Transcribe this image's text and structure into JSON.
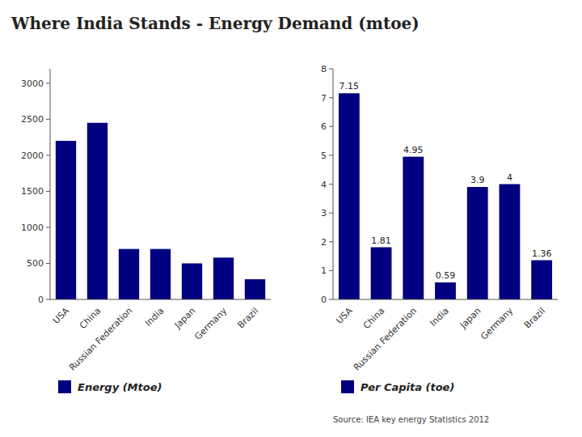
{
  "chart_data": [
    {
      "type": "bar",
      "title": "Where India Stands - Energy Demand (mtoe)",
      "categories": [
        "USA",
        "China",
        "Russian Federation",
        "India",
        "Japan",
        "Germany",
        "Brazil"
      ],
      "series": [
        {
          "name": "Energy (Mtoe)",
          "color": "#000080",
          "values": [
            2200,
            2450,
            700,
            700,
            500,
            580,
            280
          ]
        }
      ],
      "ylim": [
        0,
        3200
      ],
      "yticks": [
        0,
        500,
        1000,
        1500,
        2000,
        2500,
        3000
      ],
      "grid": false,
      "legend": "bottom"
    },
    {
      "type": "bar",
      "categories": [
        "USA",
        "China",
        "Russian Federation",
        "India",
        "Japan",
        "Germany",
        "Brazil"
      ],
      "series": [
        {
          "name": "Per Capita (toe)",
          "color": "#000080",
          "values": [
            7.15,
            1.81,
            4.95,
            0.59,
            3.9,
            4.0,
            1.36
          ]
        }
      ],
      "ylim": [
        0,
        8
      ],
      "yticks": [
        0,
        1,
        2,
        3,
        4,
        5,
        6,
        7,
        8
      ],
      "grid": false,
      "legend": "bottom",
      "data_labels": true,
      "annotations": [
        "Source: IEA key energy  Statistics 2012"
      ]
    }
  ]
}
